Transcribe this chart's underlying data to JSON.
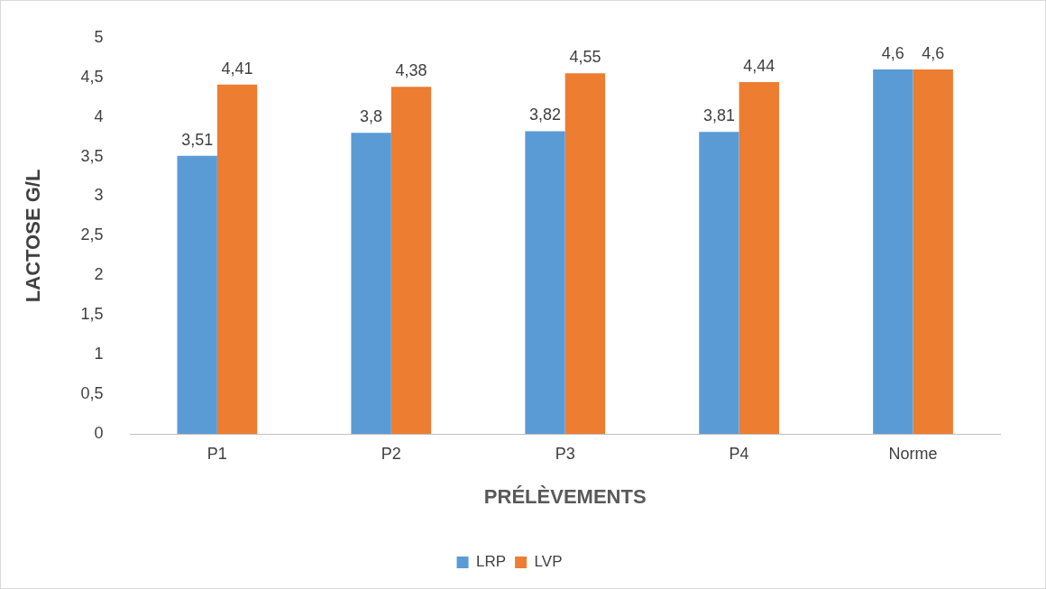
{
  "chart_data": {
    "type": "bar",
    "xlabel": "PRÉLÈVEMENTS",
    "ylabel": "LACTOSE G/L",
    "categories": [
      "P1",
      "P2",
      "P3",
      "P4",
      "Norme"
    ],
    "series": [
      {
        "name": "LRP",
        "color": "#5b9bd5",
        "values": [
          3.51,
          3.8,
          3.82,
          3.81,
          4.6
        ],
        "value_labels": [
          "3,51",
          "3,8",
          "3,82",
          "3,81",
          "4,6"
        ]
      },
      {
        "name": "LVP",
        "color": "#ed7d31",
        "values": [
          4.41,
          4.38,
          4.55,
          4.44,
          4.6
        ],
        "value_labels": [
          "4,41",
          "4,38",
          "4,55",
          "4,44",
          "4,6"
        ]
      }
    ],
    "ylim": [
      0,
      5
    ],
    "yticks": [
      0,
      {
        "value": 0.5,
        "label": "0,5"
      },
      1,
      {
        "value": 1.5,
        "label": "1,5"
      },
      2,
      {
        "value": 2.5,
        "label": "2,5"
      },
      3,
      {
        "value": 3.5,
        "label": "3,5"
      },
      4,
      {
        "value": 4.5,
        "label": "4,5"
      },
      5
    ],
    "grid": false,
    "legend": "bottom"
  }
}
